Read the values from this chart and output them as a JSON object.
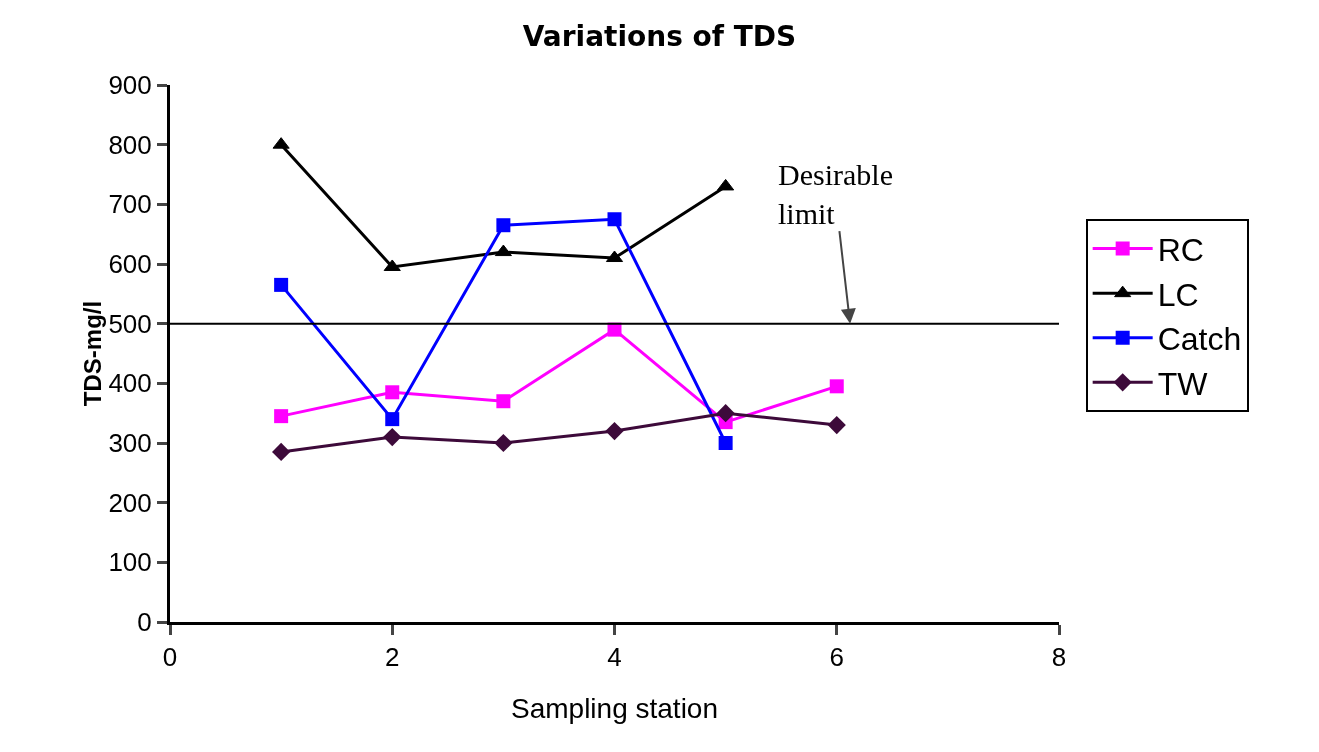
{
  "chart_data": {
    "type": "line",
    "title": "Variations of TDS",
    "xlabel": "Sampling station",
    "ylabel": "TDS-mg/l",
    "x": [
      1,
      2,
      3,
      4,
      5,
      6
    ],
    "series": [
      {
        "name": "RC",
        "color": "#ff00ff",
        "marker": "square",
        "values": [
          345,
          385,
          370,
          490,
          335,
          395
        ]
      },
      {
        "name": "LC",
        "color": "#000000",
        "marker": "triangle",
        "values": [
          800,
          595,
          620,
          610,
          730,
          null
        ]
      },
      {
        "name": "Catch",
        "color": "#0000ff",
        "marker": "square",
        "values": [
          565,
          340,
          665,
          675,
          300,
          null
        ]
      },
      {
        "name": "TW",
        "color": "#3d0a3a",
        "marker": "diamond",
        "values": [
          285,
          310,
          300,
          320,
          350,
          330
        ]
      }
    ],
    "xlim": [
      0,
      8
    ],
    "xticks": [
      0,
      2,
      4,
      6,
      8
    ],
    "ylim": [
      0,
      900
    ],
    "yticks": [
      0,
      100,
      200,
      300,
      400,
      500,
      600,
      700,
      800,
      900
    ],
    "ref_lines": [
      {
        "axis": "y",
        "value": 500,
        "label": "Desirable limit",
        "color": "#000000"
      }
    ],
    "grid": false,
    "legend": "right",
    "line_style": "solid"
  }
}
